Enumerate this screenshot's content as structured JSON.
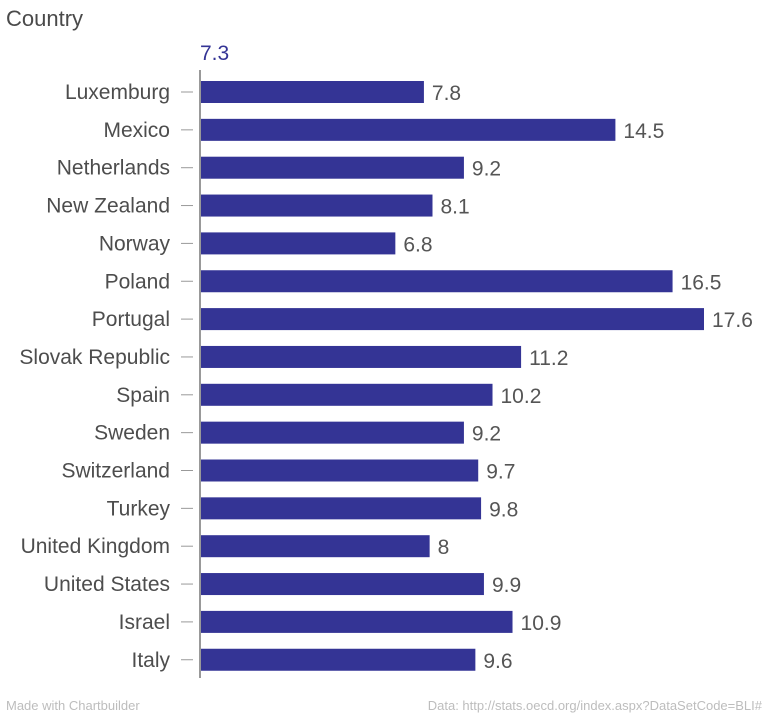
{
  "chart_data": {
    "type": "bar",
    "orientation": "horizontal",
    "title": "Country",
    "top_value_label": "7.3",
    "categories": [
      "Luxemburg",
      "Mexico",
      "Netherlands",
      "New Zealand",
      "Norway",
      "Poland",
      "Portugal",
      "Slovak Republic",
      "Spain",
      "Sweden",
      "Switzerland",
      "Turkey",
      "United Kingdom",
      "United States",
      "Israel",
      "Italy"
    ],
    "values": [
      7.8,
      14.5,
      9.2,
      8.1,
      6.8,
      16.5,
      17.6,
      11.2,
      10.2,
      9.2,
      9.7,
      9.8,
      8,
      9.9,
      10.9,
      9.6
    ],
    "value_labels": [
      "7.8",
      "14.5",
      "9.2",
      "8.1",
      "6.8",
      "16.5",
      "17.6",
      "11.2",
      "10.2",
      "9.2",
      "9.7",
      "9.8",
      "8",
      "9.9",
      "10.9",
      "9.6"
    ],
    "xlim": [
      0,
      17.6
    ],
    "grid": false,
    "bar_color": "#343495"
  },
  "footer": {
    "left": "Made with Chartbuilder",
    "right": "Data: http://stats.oecd.org/index.aspx?DataSetCode=BLI#"
  }
}
